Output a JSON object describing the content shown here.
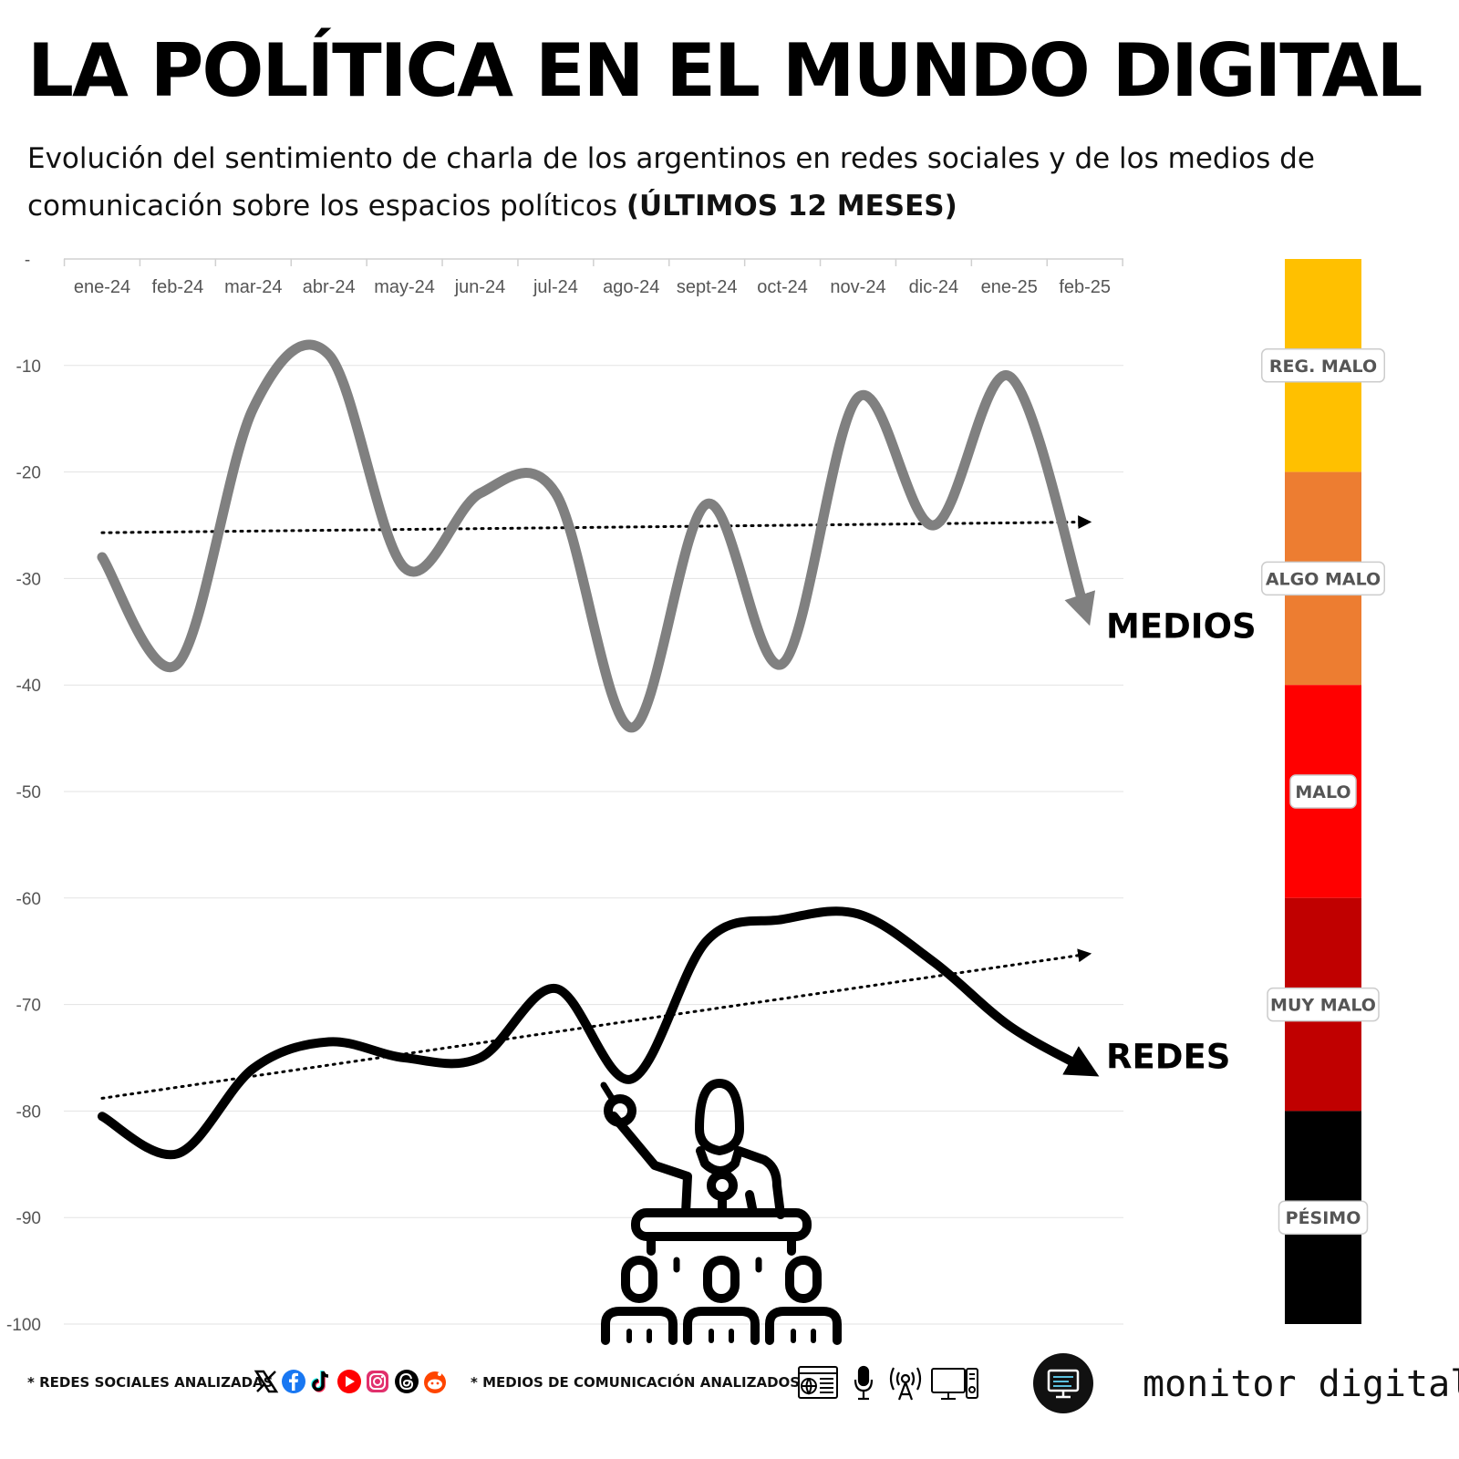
{
  "title": "LA POLÍTICA EN EL MUNDO DIGITAL",
  "subtitle": "Evolución del sentimiento de charla de los argentinos en redes sociales y de los medios de comunicación sobre los espacios políticos",
  "subtitle_bold": "(ÚLTIMOS 12 MESES)",
  "chart_data": {
    "type": "line",
    "categories": [
      "ene-24",
      "feb-24",
      "mar-24",
      "abr-24",
      "may-24",
      "jun-24",
      "jul-24",
      "ago-24",
      "sept-24",
      "oct-24",
      "nov-24",
      "dic-24",
      "ene-25",
      "feb-25"
    ],
    "y_tick_labels": [
      "-",
      "-10",
      "-20",
      "-30",
      "-40",
      "-50",
      "-60",
      "-70",
      "-80",
      "-90",
      "-100"
    ],
    "ylim": [
      -100,
      0
    ],
    "grid": true,
    "series": [
      {
        "name": "MEDIOS",
        "color": "#808080",
        "values": [
          -28,
          -38,
          -14,
          -9,
          -29,
          -22,
          -22,
          -44,
          -23,
          -38,
          -13,
          -25,
          -11,
          -33
        ],
        "trendline": {
          "style": "dotted",
          "start": -25.7,
          "end": -24.7
        }
      },
      {
        "name": "REDES",
        "color": "#000000",
        "values": [
          -80.5,
          -84,
          -76,
          -73.5,
          -75,
          -75,
          -68.5,
          -77,
          -64,
          -62,
          -61.5,
          -66,
          -72,
          -76
        ],
        "trendline": {
          "style": "dotted",
          "start": -78.8,
          "end": -65.3
        }
      }
    ],
    "scale_legend": [
      {
        "label": "REG. MALO",
        "range": [
          0,
          -20
        ],
        "color": "#FFC000"
      },
      {
        "label": "ALGO MALO",
        "range": [
          -20,
          -40
        ],
        "color": "#ED7D31"
      },
      {
        "label": "MALO",
        "range": [
          -40,
          -60
        ],
        "color": "#FF0000"
      },
      {
        "label": "MUY MALO",
        "range": [
          -60,
          -80
        ],
        "color": "#C00000"
      },
      {
        "label": "PÉSIMO",
        "range": [
          -80,
          -100
        ],
        "color": "#000000"
      }
    ]
  },
  "footer": {
    "social_label": "* REDES SOCIALES ANALIZADAS",
    "media_label": "* MEDIOS DE COMUNICACIÓN ANALIZADOS",
    "brand": "monitor digital",
    "social_icons": [
      "x-icon",
      "facebook-icon",
      "tiktok-icon",
      "youtube-icon",
      "instagram-icon",
      "threads-icon",
      "reddit-icon"
    ],
    "media_icons": [
      "newspaper-icon",
      "microphone-icon",
      "radio-antenna-icon",
      "tv-monitor-icon"
    ]
  }
}
